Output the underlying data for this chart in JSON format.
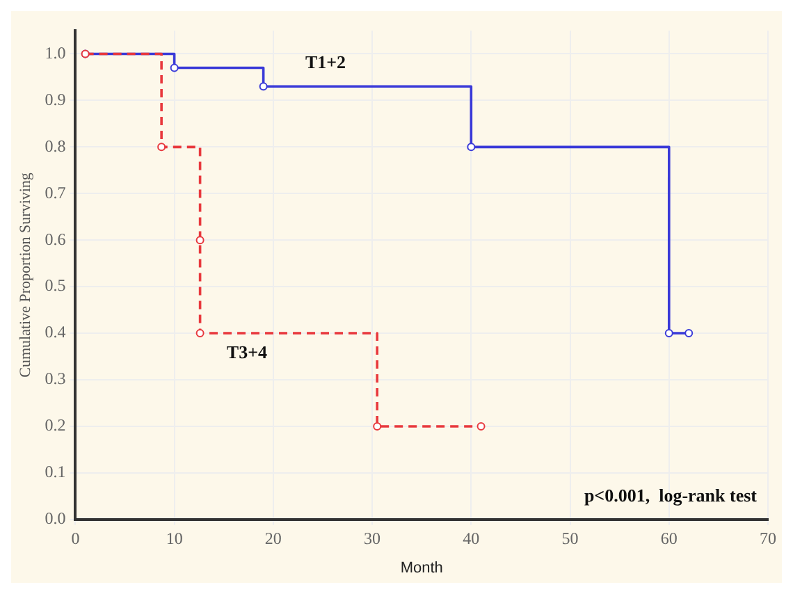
{
  "chart_data": {
    "type": "step",
    "xlabel": "Month",
    "ylabel": "Cumulative Proportion Surviving",
    "series": [
      {
        "name": "T1+2",
        "color": "#3a3ad8",
        "line_style": "solid",
        "x": [
          1,
          10,
          19,
          40,
          60,
          62
        ],
        "values": [
          1.0,
          0.97,
          0.93,
          0.8,
          0.4,
          0.4
        ]
      },
      {
        "name": "T3+4",
        "color": "#e8383d",
        "line_style": "dashed",
        "x": [
          1,
          8.7,
          12.6,
          12.6,
          30.5,
          41
        ],
        "values": [
          1.0,
          0.8,
          0.6,
          0.4,
          0.2,
          0.2
        ]
      }
    ],
    "xlim": [
      0,
      70
    ],
    "xticks": [
      0,
      10,
      20,
      30,
      40,
      50,
      60,
      70
    ],
    "ylim": [
      0,
      1.05
    ],
    "yticks": [
      {
        "value": 0,
        "label": "0.0"
      },
      0.1,
      0.2,
      0.3,
      0.4,
      0.5,
      0.6,
      0.7,
      0.8,
      0.9,
      {
        "value": 1,
        "label": "1.0"
      }
    ],
    "grid": true,
    "legend": false,
    "marker": "circle",
    "annotations": [
      "p<0.001,  log-rank test"
    ]
  }
}
